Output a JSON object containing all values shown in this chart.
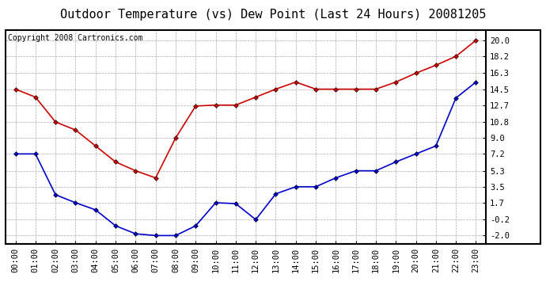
{
  "title": "Outdoor Temperature (vs) Dew Point (Last 24 Hours) 20081205",
  "copyright_text": "Copyright 2008 Cartronics.com",
  "hours": [
    "00:00",
    "01:00",
    "02:00",
    "03:00",
    "04:00",
    "05:00",
    "06:00",
    "07:00",
    "08:00",
    "09:00",
    "10:00",
    "11:00",
    "12:00",
    "13:00",
    "14:00",
    "15:00",
    "16:00",
    "17:00",
    "18:00",
    "19:00",
    "20:00",
    "21:00",
    "22:00",
    "23:00"
  ],
  "temp": [
    14.5,
    13.6,
    10.8,
    9.9,
    8.1,
    6.3,
    5.3,
    4.5,
    9.0,
    12.6,
    12.7,
    12.7,
    13.6,
    14.5,
    15.3,
    14.5,
    14.5,
    14.5,
    14.5,
    15.3,
    16.3,
    17.2,
    18.2,
    20.0
  ],
  "dew": [
    7.2,
    7.2,
    2.6,
    1.7,
    0.9,
    -0.9,
    -1.8,
    -2.0,
    -2.0,
    -0.9,
    1.7,
    1.6,
    -0.2,
    2.7,
    3.5,
    3.5,
    4.5,
    5.3,
    5.3,
    6.3,
    7.2,
    8.1,
    13.5,
    15.3
  ],
  "temp_color": "#cc0000",
  "dew_color": "#0000cc",
  "bg_color": "#ffffff",
  "plot_bg_color": "#ffffff",
  "grid_color": "#aaaaaa",
  "yticks": [
    -2.0,
    -0.2,
    1.7,
    3.5,
    5.3,
    7.2,
    9.0,
    10.8,
    12.7,
    14.5,
    16.3,
    18.2,
    20.0
  ],
  "ylim": [
    -2.9,
    21.2
  ],
  "title_fontsize": 11,
  "tick_fontsize": 7.5,
  "copyright_fontsize": 7
}
